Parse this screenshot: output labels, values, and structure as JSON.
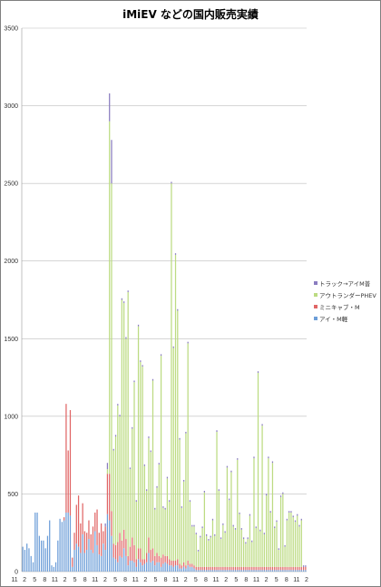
{
  "chart_data": {
    "type": "bar",
    "stacked": true,
    "title": "iMiEV などの国内販売実績",
    "xlabel": "",
    "ylabel": "",
    "ylim": [
      0,
      3500
    ],
    "y_ticks": [
      0,
      500,
      1000,
      1500,
      2000,
      2500,
      3000,
      3500
    ],
    "grid": true,
    "legend_position": "right",
    "x_tick_labels": [
      "11",
      "2",
      "5",
      "8",
      "11",
      "2",
      "5",
      "8",
      "11",
      "2",
      "5",
      "8",
      "11",
      "2",
      "5",
      "8",
      "11",
      "2",
      "5",
      "8",
      "11",
      "2",
      "5",
      "8",
      "11",
      "2",
      "5",
      "8",
      "11",
      "2"
    ],
    "series_order_bottom_to_top": [
      "アイ・M軽",
      "ミニキャブ・M",
      "アウトランダーPHEV",
      "トラック→アイM普"
    ],
    "legend_order_top_to_bottom": [
      "トラック→アイM普",
      "アウトランダーPHEV",
      "ミニキャブ・M",
      "アイ・M軽"
    ],
    "colors": {
      "アイ・M軽": "#6d9ed8",
      "ミニキャブ・M": "#e06666",
      "アウトランダーPHEV": "#bcdb82",
      "トラック→アイM普": "#8a7cc0"
    },
    "series": [
      {
        "name": "アイ・M軽",
        "values": [
          160,
          140,
          180,
          150,
          100,
          60,
          380,
          380,
          230,
          200,
          200,
          150,
          230,
          330,
          40,
          30,
          60,
          200,
          340,
          320,
          330,
          380,
          380,
          360,
          30,
          140,
          180,
          160,
          120,
          240,
          120,
          140,
          210,
          140,
          120,
          260,
          170,
          110,
          100,
          180,
          140,
          370,
          330,
          230,
          90,
          80,
          60,
          100,
          90,
          150,
          100,
          40,
          70,
          70,
          60,
          30,
          80,
          60,
          40,
          50,
          60,
          120,
          60,
          70,
          40,
          60,
          60,
          30,
          50,
          60,
          50,
          40,
          40,
          30,
          40,
          40,
          20,
          20,
          30,
          20,
          40,
          30,
          30,
          20,
          10,
          10,
          10,
          10,
          10,
          10,
          10,
          10,
          10,
          10,
          10,
          10,
          10,
          10,
          10,
          10,
          10,
          10,
          10,
          10,
          10,
          10,
          10,
          10,
          10,
          10,
          10,
          10,
          10,
          10,
          10,
          10,
          10,
          10,
          10,
          10,
          10,
          10,
          10,
          10,
          10,
          10,
          10,
          10,
          10,
          10,
          10,
          10,
          10,
          10,
          10,
          10,
          10,
          10
        ]
      },
      {
        "name": "ミニキャブ・M",
        "values": [
          0,
          0,
          0,
          0,
          0,
          0,
          0,
          0,
          0,
          0,
          0,
          0,
          0,
          0,
          0,
          0,
          0,
          0,
          0,
          0,
          20,
          700,
          400,
          680,
          60,
          110,
          250,
          330,
          190,
          200,
          140,
          110,
          120,
          100,
          170,
          120,
          230,
          140,
          210,
          80,
          150,
          260,
          300,
          160,
          90,
          90,
          130,
          150,
          110,
          120,
          110,
          60,
          90,
          150,
          110,
          50,
          70,
          90,
          40,
          30,
          60,
          100,
          80,
          80,
          60,
          60,
          40,
          60,
          60,
          40,
          50,
          40,
          30,
          40,
          30,
          40,
          30,
          20,
          30,
          20,
          30,
          20,
          20,
          20,
          20,
          20,
          20,
          20,
          20,
          20,
          20,
          20,
          20,
          20,
          20,
          20,
          20,
          20,
          20,
          20,
          20,
          20,
          20,
          20,
          20,
          20,
          20,
          20,
          20,
          20,
          20,
          20,
          20,
          20,
          20,
          20,
          20,
          20,
          20,
          20,
          20,
          20,
          20,
          20,
          20,
          20,
          20,
          20,
          20,
          20,
          20,
          20,
          20,
          20,
          20,
          20,
          20,
          20
        ]
      },
      {
        "name": "アウトランダーPHEV",
        "values": [
          0,
          0,
          0,
          0,
          0,
          0,
          0,
          0,
          0,
          0,
          0,
          0,
          0,
          0,
          0,
          0,
          0,
          0,
          0,
          0,
          0,
          0,
          0,
          0,
          0,
          0,
          0,
          0,
          0,
          0,
          0,
          0,
          0,
          0,
          0,
          0,
          0,
          0,
          0,
          0,
          0,
          30,
          2270,
          2110,
          600,
          700,
          880,
          750,
          1550,
          1460,
          1290,
          1700,
          500,
          700,
          1050,
          370,
          1430,
          1200,
          1240,
          600,
          400,
          640,
          630,
          1080,
          300,
          420,
          590,
          1300,
          300,
          300,
          500,
          370,
          2430,
          1370,
          1970,
          1600,
          800,
          370,
          520,
          850,
          1400,
          400,
          240,
          250,
          210,
          100,
          190,
          250,
          480,
          200,
          170,
          190,
          300,
          200,
          870,
          490,
          180,
          270,
          220,
          640,
          430,
          610,
          260,
          240,
          690,
          340,
          240,
          180,
          150,
          180,
          330,
          160,
          700,
          250,
          1250,
          230,
          910,
          210,
          460,
          700,
          350,
          670,
          250,
          290,
          110,
          450,
          470,
          130,
          300,
          350,
          350,
          320,
          290,
          330,
          260,
          300
        ]
      },
      {
        "name": "トラック→アイM普",
        "values": [
          0,
          0,
          0,
          0,
          0,
          0,
          0,
          0,
          0,
          0,
          0,
          0,
          0,
          0,
          0,
          0,
          0,
          0,
          0,
          0,
          0,
          0,
          0,
          0,
          0,
          0,
          0,
          0,
          0,
          0,
          0,
          0,
          0,
          0,
          0,
          0,
          0,
          0,
          0,
          0,
          20,
          40,
          180,
          280,
          10,
          10,
          10,
          10,
          10,
          10,
          10,
          10,
          10,
          10,
          10,
          10,
          10,
          10,
          10,
          10,
          10,
          10,
          10,
          10,
          10,
          10,
          10,
          10,
          10,
          10,
          10,
          10,
          10,
          10,
          10,
          10,
          10,
          10,
          10,
          10,
          10,
          10,
          10,
          10,
          10,
          10,
          10,
          10,
          10,
          10,
          10,
          10,
          10,
          10,
          10,
          10,
          10,
          10,
          10,
          10,
          10,
          10,
          10,
          10,
          10,
          10,
          10,
          10,
          10,
          10,
          10,
          10,
          10,
          10,
          10,
          10,
          10,
          10,
          10,
          10,
          10,
          10,
          10,
          10,
          10,
          10,
          10,
          10,
          10,
          10,
          10,
          10,
          10,
          10,
          10,
          10,
          10,
          10
        ]
      }
    ]
  }
}
